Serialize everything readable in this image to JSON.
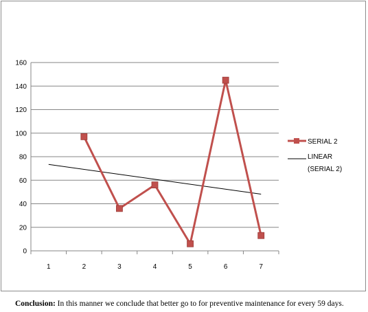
{
  "chart_data": {
    "type": "line",
    "x": [
      1,
      2,
      3,
      4,
      5,
      6,
      7
    ],
    "categories": [
      "1",
      "2",
      "3",
      "4",
      "5",
      "6",
      "7"
    ],
    "ylim": [
      0,
      160
    ],
    "yticks": [
      0,
      20,
      40,
      60,
      80,
      100,
      120,
      140,
      160
    ],
    "grid": true,
    "legend_position": "right",
    "series": [
      {
        "name": "SERIAL 2",
        "x": [
          2,
          3,
          4,
          5,
          6,
          7
        ],
        "values": [
          97,
          36,
          56,
          6,
          145,
          13
        ],
        "color": "#c0504d",
        "marker": "square"
      }
    ],
    "trendline": {
      "name_line1": "LINEAR",
      "name_line2": "(SERIAL 2)",
      "x": [
        1,
        7
      ],
      "values": [
        73.4,
        48.2
      ],
      "color": "#000000"
    }
  },
  "conclusion": {
    "label": "Conclusion:",
    "text": " In this manner we conclude that better go to for preventive maintenance for every 59 days."
  }
}
